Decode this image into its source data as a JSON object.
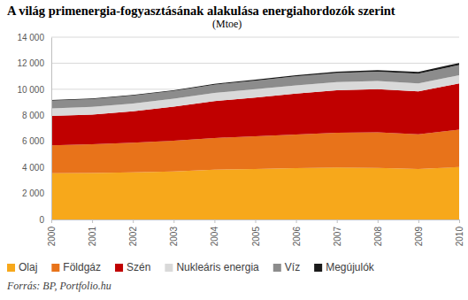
{
  "chart_data": {
    "type": "area",
    "title": "A világ primenergia-fogyasztásának alakulása energiahordozók szerint",
    "subtitle": "(Mtoe)",
    "source": "Forrás: BP, Portfolio.hu",
    "stacked": true,
    "grid": true,
    "legend": "bottom",
    "categories": [
      "2000",
      "2001",
      "2002",
      "2003",
      "2004",
      "2005",
      "2006",
      "2007",
      "2008",
      "2009",
      "2010"
    ],
    "series": [
      {
        "name": "Olaj",
        "color": "#f7a81b",
        "values": [
          3550,
          3570,
          3620,
          3680,
          3820,
          3880,
          3940,
          3990,
          3960,
          3880,
          4030
        ]
      },
      {
        "name": "Földgáz",
        "color": "#e8731a",
        "values": [
          2150,
          2200,
          2280,
          2370,
          2440,
          2510,
          2580,
          2670,
          2740,
          2660,
          2860
        ]
      },
      {
        "name": "Szén",
        "color": "#c00000",
        "values": [
          2250,
          2280,
          2400,
          2620,
          2830,
          2980,
          3140,
          3270,
          3310,
          3300,
          3560
        ]
      },
      {
        "name": "Nukleáris energia",
        "color": "#d9d9d9",
        "values": [
          580,
          600,
          610,
          600,
          630,
          630,
          640,
          620,
          620,
          610,
          630
        ]
      },
      {
        "name": "Víz",
        "color": "#8c8c8c",
        "values": [
          600,
          590,
          600,
          600,
          630,
          660,
          690,
          700,
          720,
          740,
          780
        ]
      },
      {
        "name": "Megújulók",
        "color": "#1a1a1a",
        "values": [
          50,
          50,
          60,
          60,
          70,
          80,
          90,
          100,
          120,
          140,
          160
        ]
      }
    ],
    "ylim": [
      0,
      14000
    ],
    "yticks": [
      0,
      {
        "value": 2000,
        "label": "2 000"
      },
      {
        "value": 4000,
        "label": "4 000"
      },
      {
        "value": 6000,
        "label": "6 000"
      },
      {
        "value": 8000,
        "label": "8 000"
      },
      {
        "value": 10000,
        "label": "10 000"
      },
      {
        "value": 12000,
        "label": "12 000"
      },
      {
        "value": 14000,
        "label": "14 000"
      }
    ]
  }
}
